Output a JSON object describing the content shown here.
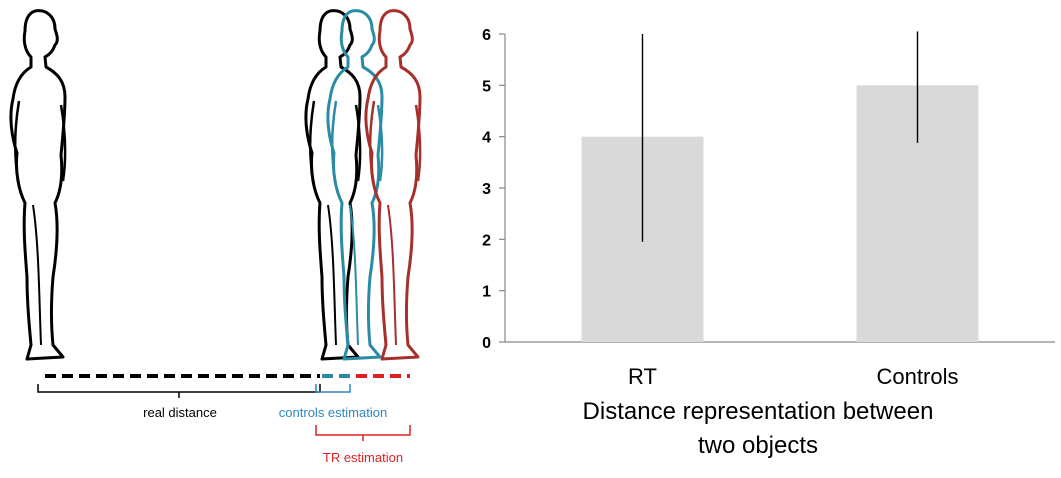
{
  "figure": {
    "real_distance_label": "real distance",
    "controls_estimation_label": "controls estimation",
    "tr_estimation_label": "TR estimation",
    "colors": {
      "reference": "#000000",
      "controls": "#2a8ba6",
      "tr": "#a5302c",
      "controls_label": "#2e86c1",
      "tr_label": "#e02020"
    }
  },
  "caption": {
    "line1": "Distance representation between",
    "line2": "two objects"
  },
  "chart_data": {
    "type": "bar",
    "categories": [
      "RT",
      "Controls"
    ],
    "values": [
      4,
      5
    ],
    "error_low": [
      1.95,
      3.88
    ],
    "error_high": [
      6.0,
      6.05
    ],
    "ylim": [
      0,
      6
    ],
    "yticks": [
      "0",
      "1",
      "2",
      "3",
      "4",
      "5",
      "6"
    ],
    "title": "Distance representation between two objects",
    "xlabel": "",
    "ylabel": "",
    "grid": false,
    "bar_color": "#d9d9d9",
    "error_color": "#000000"
  }
}
